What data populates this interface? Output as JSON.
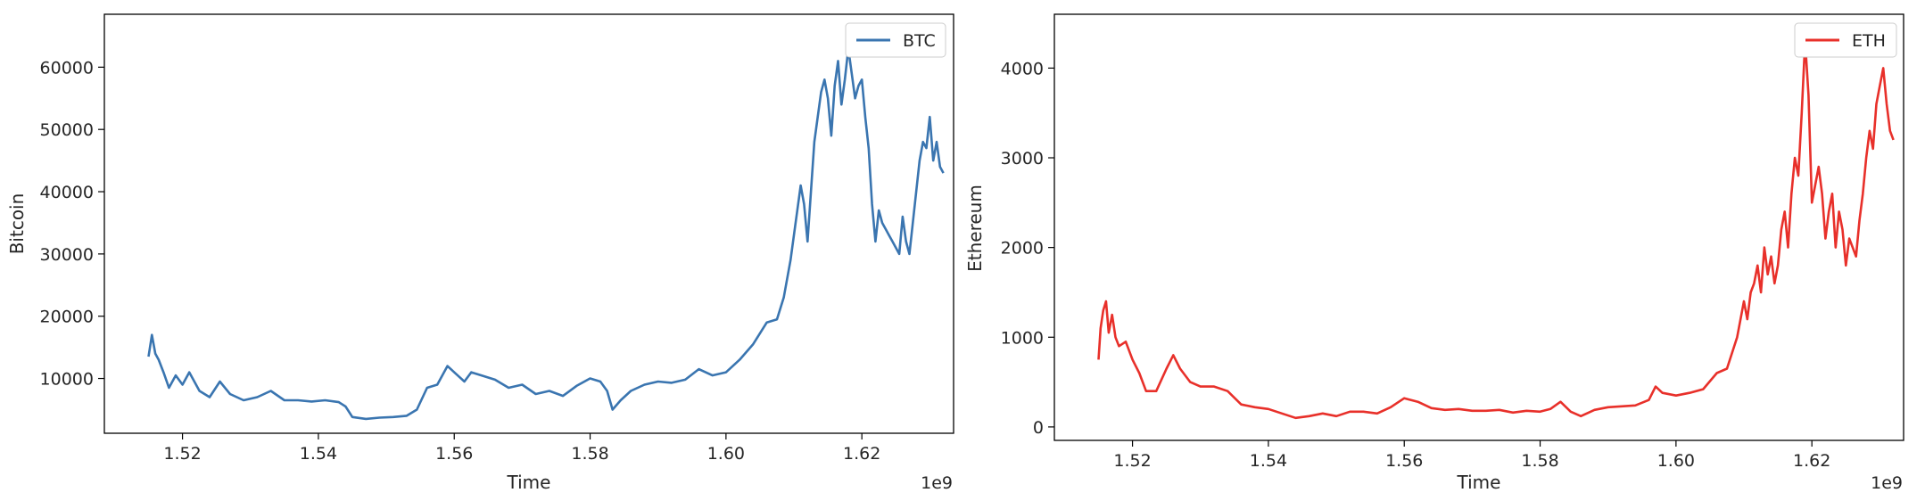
{
  "chart_data": [
    {
      "type": "line",
      "title": "",
      "xlabel": "Time",
      "ylabel": "Bitcoin",
      "x_offset_label": "1e9",
      "xlim": [
        1.5085,
        1.6335
      ],
      "ylim": [
        1200,
        68500
      ],
      "xticks": [
        1.52,
        1.54,
        1.56,
        1.58,
        1.6,
        1.62
      ],
      "xtick_labels": [
        "1.52",
        "1.54",
        "1.56",
        "1.58",
        "1.60",
        "1.62"
      ],
      "yticks": [
        10000,
        20000,
        30000,
        40000,
        50000,
        60000
      ],
      "ytick_labels": [
        "10000",
        "20000",
        "30000",
        "40000",
        "50000",
        "60000"
      ],
      "grid": false,
      "legend_position": "top-right",
      "series": [
        {
          "name": "BTC",
          "color": "#3a75b0",
          "x": [
            1.515,
            1.5155,
            1.516,
            1.5165,
            1.5172,
            1.518,
            1.519,
            1.52,
            1.521,
            1.5225,
            1.524,
            1.5255,
            1.527,
            1.529,
            1.531,
            1.533,
            1.535,
            1.537,
            1.539,
            1.541,
            1.543,
            1.544,
            1.545,
            1.547,
            1.549,
            1.551,
            1.553,
            1.5545,
            1.556,
            1.5575,
            1.559,
            1.5605,
            1.5615,
            1.5625,
            1.564,
            1.566,
            1.568,
            1.57,
            1.572,
            1.574,
            1.576,
            1.578,
            1.58,
            1.5815,
            1.5825,
            1.5833,
            1.5845,
            1.586,
            1.588,
            1.59,
            1.592,
            1.594,
            1.596,
            1.598,
            1.6,
            1.602,
            1.604,
            1.606,
            1.6075,
            1.6085,
            1.6095,
            1.61,
            1.6105,
            1.611,
            1.6115,
            1.612,
            1.6125,
            1.613,
            1.6135,
            1.614,
            1.6145,
            1.615,
            1.6155,
            1.616,
            1.6165,
            1.617,
            1.6175,
            1.618,
            1.6185,
            1.619,
            1.6195,
            1.62,
            1.6205,
            1.621,
            1.6215,
            1.622,
            1.6225,
            1.623,
            1.6235,
            1.624,
            1.6245,
            1.625,
            1.6255,
            1.626,
            1.6265,
            1.627,
            1.6275,
            1.628,
            1.6285,
            1.629,
            1.6295,
            1.63,
            1.6305,
            1.631,
            1.6315,
            1.632
          ],
          "y": [
            13500,
            17000,
            14000,
            13000,
            11000,
            8500,
            10500,
            9000,
            11000,
            8000,
            7000,
            9500,
            7500,
            6500,
            7000,
            8000,
            6500,
            6500,
            6300,
            6500,
            6200,
            5500,
            3800,
            3500,
            3700,
            3800,
            4000,
            5000,
            8500,
            9000,
            12000,
            10500,
            9500,
            11000,
            10500,
            9800,
            8500,
            9000,
            7500,
            8000,
            7200,
            8800,
            10000,
            9500,
            8000,
            5000,
            6500,
            8000,
            9000,
            9500,
            9300,
            9800,
            11500,
            10500,
            11000,
            13000,
            15500,
            19000,
            19500,
            23000,
            29000,
            33000,
            37000,
            41000,
            38000,
            32000,
            40000,
            48000,
            52000,
            56000,
            58000,
            55000,
            49000,
            57000,
            61000,
            54000,
            58000,
            63000,
            59000,
            55000,
            57000,
            58000,
            52000,
            47000,
            38000,
            32000,
            37000,
            35000,
            34000,
            33000,
            32000,
            31000,
            30000,
            36000,
            32000,
            30000,
            35000,
            40000,
            45000,
            48000,
            47000,
            52000,
            45000,
            48000,
            44000,
            43000
          ]
        }
      ]
    },
    {
      "type": "line",
      "title": "",
      "xlabel": "Time",
      "ylabel": "Ethereum",
      "x_offset_label": "1e9",
      "xlim": [
        1.5085,
        1.6335
      ],
      "ylim": [
        -150,
        4600
      ],
      "xticks": [
        1.52,
        1.54,
        1.56,
        1.58,
        1.6,
        1.62
      ],
      "xtick_labels": [
        "1.52",
        "1.54",
        "1.56",
        "1.58",
        "1.60",
        "1.62"
      ],
      "yticks": [
        0,
        1000,
        2000,
        3000,
        4000
      ],
      "ytick_labels": [
        "0",
        "1000",
        "2000",
        "3000",
        "4000"
      ],
      "grid": false,
      "legend_position": "top-right",
      "series": [
        {
          "name": "ETH",
          "color": "#e8302a",
          "x": [
            1.515,
            1.5153,
            1.5157,
            1.5161,
            1.5165,
            1.517,
            1.5175,
            1.518,
            1.519,
            1.52,
            1.521,
            1.522,
            1.5235,
            1.525,
            1.526,
            1.527,
            1.5285,
            1.53,
            1.532,
            1.534,
            1.536,
            1.538,
            1.54,
            1.542,
            1.544,
            1.546,
            1.548,
            1.55,
            1.552,
            1.554,
            1.556,
            1.558,
            1.56,
            1.562,
            1.564,
            1.566,
            1.568,
            1.57,
            1.572,
            1.574,
            1.576,
            1.578,
            1.58,
            1.5815,
            1.583,
            1.5845,
            1.586,
            1.588,
            1.59,
            1.592,
            1.594,
            1.596,
            1.597,
            1.598,
            1.6,
            1.602,
            1.604,
            1.606,
            1.6075,
            1.609,
            1.61,
            1.6105,
            1.611,
            1.6115,
            1.612,
            1.6125,
            1.613,
            1.6135,
            1.614,
            1.6145,
            1.615,
            1.6155,
            1.616,
            1.6165,
            1.617,
            1.6175,
            1.618,
            1.6185,
            1.619,
            1.6195,
            1.62,
            1.6205,
            1.621,
            1.6215,
            1.622,
            1.6225,
            1.623,
            1.6235,
            1.624,
            1.6245,
            1.625,
            1.6255,
            1.626,
            1.6265,
            1.627,
            1.6275,
            1.628,
            1.6285,
            1.629,
            1.6295,
            1.63,
            1.6305,
            1.631,
            1.6315,
            1.632
          ],
          "y": [
            750,
            1100,
            1300,
            1400,
            1050,
            1250,
            1000,
            900,
            950,
            750,
            600,
            400,
            400,
            650,
            800,
            650,
            500,
            450,
            450,
            400,
            250,
            220,
            200,
            150,
            100,
            120,
            150,
            120,
            170,
            170,
            150,
            220,
            320,
            280,
            210,
            190,
            200,
            180,
            180,
            190,
            160,
            180,
            170,
            200,
            280,
            170,
            120,
            190,
            220,
            230,
            240,
            300,
            450,
            380,
            350,
            380,
            420,
            600,
            650,
            1000,
            1400,
            1200,
            1500,
            1600,
            1800,
            1500,
            2000,
            1700,
            1900,
            1600,
            1800,
            2200,
            2400,
            2000,
            2600,
            3000,
            2800,
            3500,
            4300,
            3700,
            2500,
            2700,
            2900,
            2600,
            2100,
            2400,
            2600,
            2000,
            2400,
            2200,
            1800,
            2100,
            2000,
            1900,
            2300,
            2600,
            3000,
            3300,
            3100,
            3600,
            3800,
            4000,
            3600,
            3300,
            3200
          ]
        }
      ]
    }
  ]
}
